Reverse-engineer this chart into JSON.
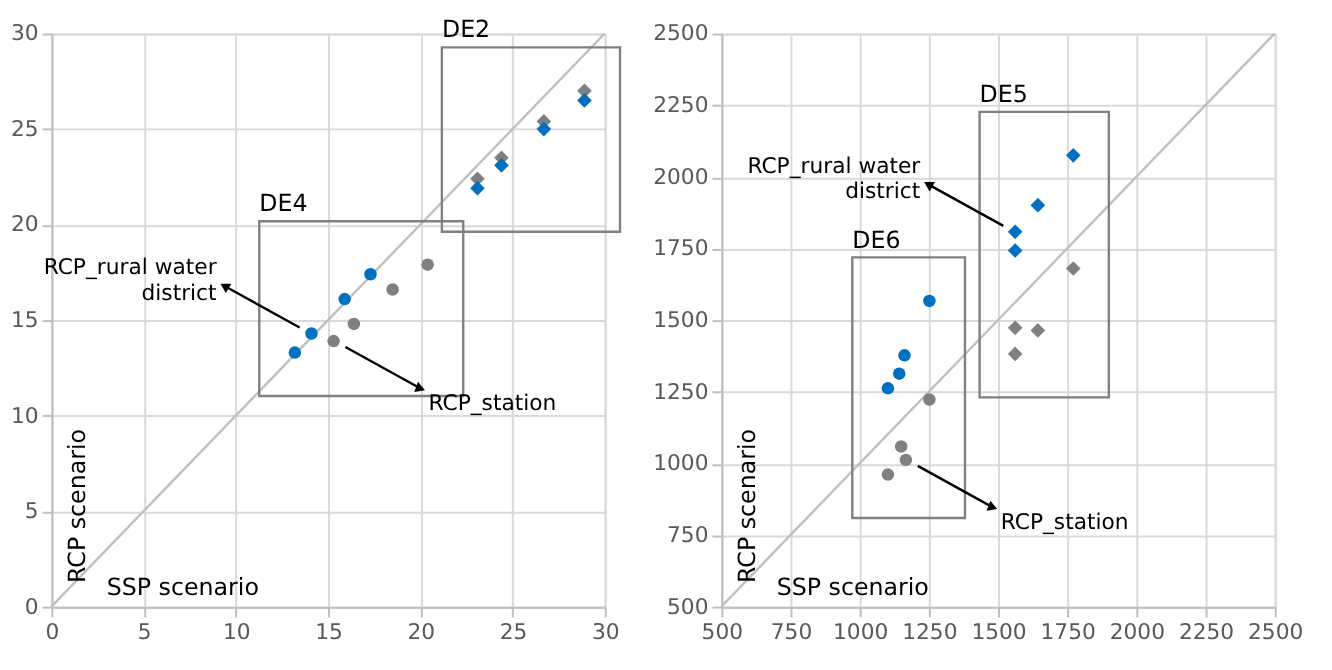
{
  "chart_data": [
    {
      "type": "scatter",
      "xlabel": "SSP scenario",
      "ylabel": "RCP scenario",
      "xlim": [
        0,
        30
      ],
      "ylim": [
        0,
        30
      ],
      "xticks": [
        0,
        5,
        10,
        15,
        20,
        25,
        30
      ],
      "yticks": [
        0,
        5,
        10,
        15,
        20,
        25,
        30
      ],
      "grid": true,
      "series": [
        {
          "type": "line",
          "color": "#bfbfbf",
          "marker": "none",
          "x": [
            0,
            30
          ],
          "values": [
            0,
            30
          ]
        },
        {
          "color": "#0070c0",
          "marker": "circle",
          "x": [
            13.2,
            14.1,
            15.9,
            17.3
          ],
          "values": [
            13.3,
            14.3,
            16.1,
            17.4
          ]
        },
        {
          "color": "#808080",
          "marker": "circle",
          "x": [
            15.3,
            16.4,
            18.5,
            20.4
          ],
          "values": [
            13.9,
            14.8,
            16.6,
            17.9
          ]
        },
        {
          "color": "#808080",
          "marker": "diamond",
          "x": [
            23.1,
            24.4,
            26.7,
            28.9
          ],
          "values": [
            22.4,
            23.5,
            25.4,
            27.0
          ]
        },
        {
          "color": "#0070c0",
          "marker": "diamond",
          "x": [
            23.1,
            24.4,
            26.7,
            28.9
          ],
          "values": [
            21.9,
            23.1,
            25.0,
            26.5
          ]
        }
      ],
      "annotations": [
        "DE2",
        "DE4",
        {
          "text": "RCP_rural water\ndistrict",
          "x": 14.1,
          "y": 14.3
        },
        {
          "text": "RCP_station",
          "x": 15.3,
          "y": 13.9
        }
      ]
    },
    {
      "type": "scatter",
      "xlabel": "SSP scenario",
      "ylabel": "RCP scenario",
      "xlim": [
        500,
        2500
      ],
      "ylim": [
        500,
        2500
      ],
      "xticks": [
        500,
        750,
        1000,
        1250,
        1500,
        1750,
        2000,
        2250,
        2500
      ],
      "yticks": [
        500,
        750,
        1000,
        1250,
        1500,
        1750,
        2000,
        2250,
        2500
      ],
      "grid": true,
      "series": [
        {
          "type": "line",
          "color": "#bfbfbf",
          "marker": "none",
          "x": [
            500,
            2500
          ],
          "values": [
            500,
            2500
          ]
        },
        {
          "color": "#0070c0",
          "marker": "circle",
          "x": [
            1102,
            1143,
            1162,
            1252
          ],
          "values": [
            1262,
            1313,
            1377,
            1567
          ]
        },
        {
          "color": "#808080",
          "marker": "circle",
          "x": [
            1102,
            1150,
            1167,
            1252
          ],
          "values": [
            961,
            1059,
            1012,
            1223
          ]
        },
        {
          "color": "#808080",
          "marker": "diamond",
          "x": [
            1562,
            1562,
            1644,
            1772
          ],
          "values": [
            1382,
            1473,
            1464,
            1680
          ]
        },
        {
          "color": "#0070c0",
          "marker": "diamond",
          "x": [
            1562,
            1562,
            1644,
            1772
          ],
          "values": [
            1743,
            1808,
            1901,
            2075
          ]
        }
      ],
      "annotations": [
        "DE5",
        "DE6",
        {
          "text": "RCP_rural water\ndistrict",
          "x": 1562,
          "y": 1808
        },
        {
          "text": "RCP_station",
          "x": 1167,
          "y": 1012
        }
      ]
    }
  ]
}
